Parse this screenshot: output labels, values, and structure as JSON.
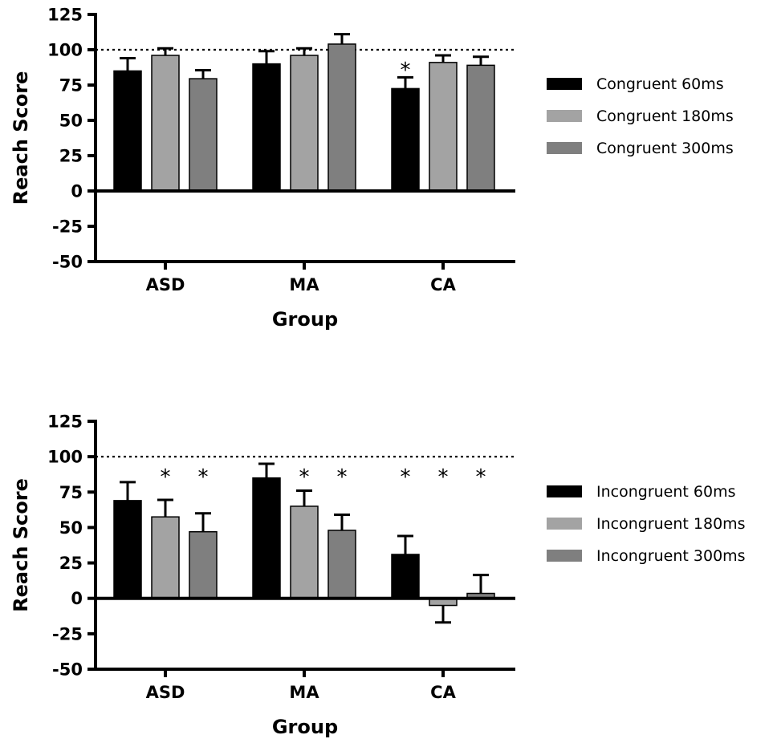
{
  "chart_data": [
    {
      "type": "bar",
      "xlabel": "Group",
      "ylabel": "Reach Score",
      "ylim": [
        -50,
        125
      ],
      "yticks": [
        "125",
        "100",
        "75",
        "50",
        "25",
        "0",
        "-25",
        "-50"
      ],
      "reference_line": 100,
      "categories": [
        "ASD",
        "MA",
        "CA"
      ],
      "series": [
        {
          "name": "Congruent 60ms",
          "color": "#000000",
          "values": [
            85,
            90,
            72.5
          ],
          "errors": [
            9,
            9,
            8
          ],
          "significant": [
            false,
            false,
            true
          ]
        },
        {
          "name": "Congruent 180ms",
          "color": "#a3a3a3",
          "values": [
            96,
            96,
            91
          ],
          "errors": [
            5,
            5,
            5
          ],
          "significant": [
            false,
            false,
            false
          ]
        },
        {
          "name": "Congruent 300ms",
          "color": "#7f7f7f",
          "values": [
            79.5,
            104,
            89
          ],
          "errors": [
            6,
            7,
            6
          ],
          "significant": [
            false,
            false,
            false
          ]
        }
      ],
      "significance_marker": "*",
      "legend_position": "right",
      "grid": false
    },
    {
      "type": "bar",
      "xlabel": "Group",
      "ylabel": "Reach Score",
      "ylim": [
        -50,
        125
      ],
      "yticks": [
        "125",
        "100",
        "75",
        "50",
        "25",
        "0",
        "-25",
        "-50"
      ],
      "reference_line": 100,
      "categories": [
        "ASD",
        "MA",
        "CA"
      ],
      "series": [
        {
          "name": "Incongruent 60ms",
          "color": "#000000",
          "values": [
            69,
            85,
            31
          ],
          "errors": [
            13,
            10,
            13
          ],
          "significant": [
            false,
            false,
            true
          ]
        },
        {
          "name": "Incongruent 180ms",
          "color": "#a3a3a3",
          "values": [
            57.5,
            65,
            -5
          ],
          "errors": [
            12,
            11,
            12
          ],
          "significant": [
            true,
            true,
            true
          ]
        },
        {
          "name": "Incongruent 300ms",
          "color": "#7f7f7f",
          "values": [
            47,
            48,
            3.5
          ],
          "errors": [
            13,
            11,
            13
          ],
          "significant": [
            true,
            true,
            true
          ]
        }
      ],
      "significance_marker": "*",
      "legend_position": "right",
      "grid": false
    }
  ]
}
